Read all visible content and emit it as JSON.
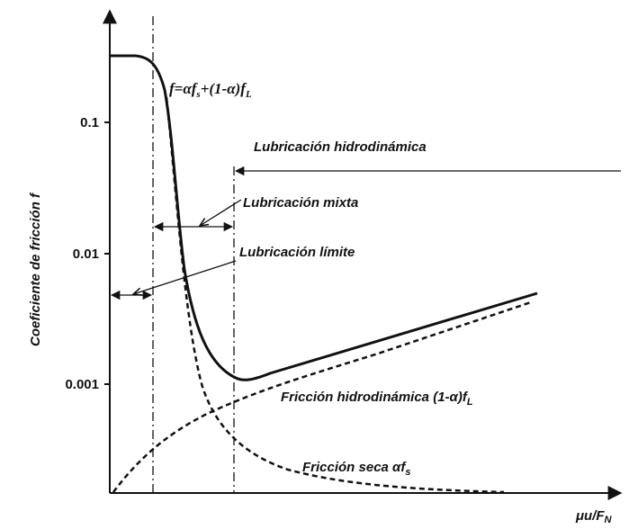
{
  "axes": {
    "y_label": "Coeficiente de fricción f",
    "x_label": [
      "μu/F",
      "N"
    ],
    "y_ticks": [
      "0.1",
      "0.01",
      "0.001"
    ]
  },
  "formula": [
    "f=αf",
    "s",
    "+(1-α)f",
    "L"
  ],
  "regimes": {
    "hydrodynamic": "Lubricación hidrodinámica",
    "mixed": "Lubricación mixta",
    "boundary": "Lubricación límite"
  },
  "curves": {
    "hydrodynamic_friction": [
      "Fricción hidrodinámica (1-α)f",
      "L"
    ],
    "dry_friction": [
      "Fricción seca αf",
      "s"
    ]
  }
}
